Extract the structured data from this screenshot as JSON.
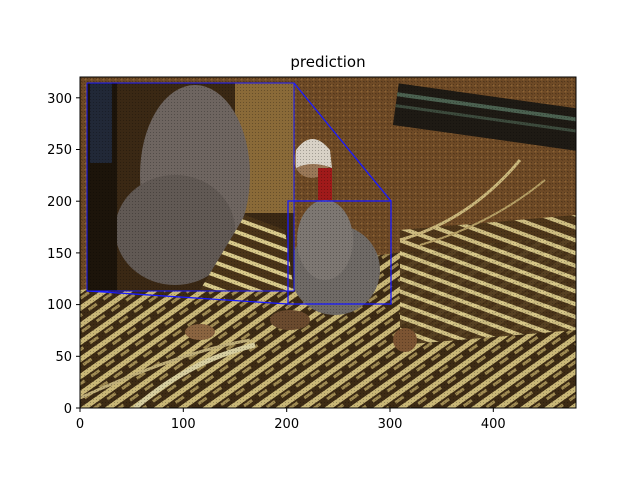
{
  "title": "prediction",
  "axes": {
    "x_ticks": [
      "0",
      "100",
      "200",
      "300",
      "400"
    ],
    "y_ticks": [
      "0",
      "50",
      "100",
      "150",
      "200",
      "250",
      "300"
    ],
    "x_range": [
      0,
      480
    ],
    "y_range": [
      0,
      320
    ]
  },
  "image": {
    "description_tag": "woven-mat-photo",
    "zoom_region": {
      "x": [
        200,
        300
      ],
      "y": [
        100,
        200
      ]
    },
    "zoom_inset_color": "#1a1aff"
  }
}
